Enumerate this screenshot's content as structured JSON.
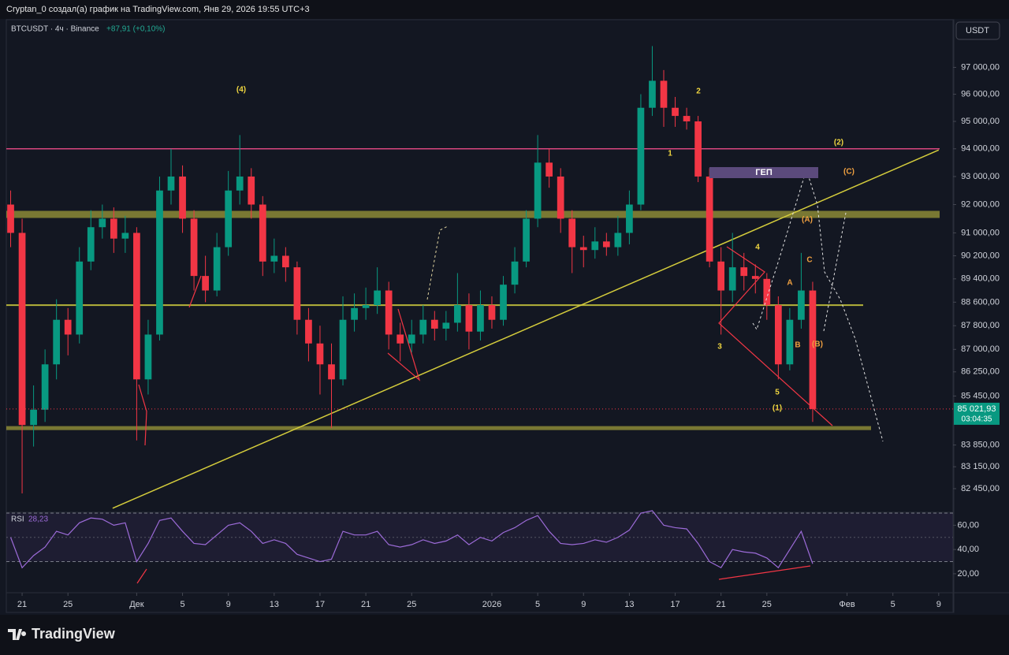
{
  "header": {
    "text": "Cryptan_0 создал(а) график на TradingView.com, Янв 29, 2026 19:55 UTC+3"
  },
  "symbol": {
    "text": "BTCUSDT · 4ч · Binance",
    "change": "+87,91 (+0,10%)"
  },
  "currency_button": "USDT",
  "brand": "TradingView",
  "chart_data": {
    "type": "candlestick",
    "yscale": "log",
    "ylim": [
      81750,
      98800
    ],
    "xlim": [
      -0.38,
      82.25
    ],
    "yticks": [
      {
        "value": 97000,
        "label": "97 000,00"
      },
      {
        "value": 96000,
        "label": "96 000,00"
      },
      {
        "value": 95000,
        "label": "95 000,00"
      },
      {
        "value": 94000,
        "label": "94 000,00"
      },
      {
        "value": 93000,
        "label": "93 000,00"
      },
      {
        "value": 92000,
        "label": "92 000,00"
      },
      {
        "value": 91000,
        "label": "91 000,00"
      },
      {
        "value": 90200,
        "label": "90 200,00"
      },
      {
        "value": 89400,
        "label": "89 400,00"
      },
      {
        "value": 88600,
        "label": "88 600,00"
      },
      {
        "value": 87800,
        "label": "87 800,00"
      },
      {
        "value": 87000,
        "label": "87 000,00"
      },
      {
        "value": 86250,
        "label": "86 250,00"
      },
      {
        "value": 85450,
        "label": "85 450,00"
      },
      {
        "value": 83850,
        "label": "83 850,00"
      },
      {
        "value": 83150,
        "label": "83 150,00"
      },
      {
        "value": 82450,
        "label": "82 450,00"
      }
    ],
    "xticks": [
      {
        "value": 1,
        "label": "21"
      },
      {
        "value": 5,
        "label": "25"
      },
      {
        "value": 11,
        "label": "Дек"
      },
      {
        "value": 15,
        "label": "5"
      },
      {
        "value": 19,
        "label": "9"
      },
      {
        "value": 23,
        "label": "13"
      },
      {
        "value": 27,
        "label": "17"
      },
      {
        "value": 31,
        "label": "21"
      },
      {
        "value": 35,
        "label": "25"
      },
      {
        "value": 42,
        "label": "2026"
      },
      {
        "value": 46,
        "label": "5"
      },
      {
        "value": 50,
        "label": "9"
      },
      {
        "value": 54,
        "label": "13"
      },
      {
        "value": 58,
        "label": "17"
      },
      {
        "value": 62,
        "label": "21"
      },
      {
        "value": 66,
        "label": "25"
      },
      {
        "value": 73,
        "label": "Фев"
      },
      {
        "value": 77,
        "label": "5"
      },
      {
        "value": 81,
        "label": "9"
      }
    ],
    "up_color": "#089981",
    "down_color": "#f23645",
    "candles": [
      [
        92000,
        92500,
        90500,
        91000
      ],
      [
        91000,
        91500,
        82300,
        84500
      ],
      [
        84500,
        85800,
        83800,
        85000
      ],
      [
        85000,
        87000,
        84600,
        86500
      ],
      [
        86500,
        88700,
        86000,
        88000
      ],
      [
        88000,
        88400,
        86800,
        87500
      ],
      [
        87500,
        90500,
        87200,
        90000
      ],
      [
        90000,
        91800,
        89700,
        91200
      ],
      [
        91200,
        92000,
        90800,
        91500
      ],
      [
        91500,
        91900,
        90300,
        90800
      ],
      [
        90800,
        91600,
        90300,
        91000
      ],
      [
        91000,
        91200,
        84000,
        86000
      ],
      [
        86000,
        88000,
        85500,
        87500
      ],
      [
        87500,
        93000,
        87300,
        92500
      ],
      [
        92500,
        94000,
        92000,
        93000
      ],
      [
        93000,
        93400,
        91000,
        91500
      ],
      [
        91500,
        91800,
        89000,
        89500
      ],
      [
        89500,
        90200,
        88600,
        89000
      ],
      [
        89000,
        91000,
        88800,
        90500
      ],
      [
        90500,
        93200,
        90200,
        92500
      ],
      [
        92500,
        94500,
        92000,
        93000
      ],
      [
        93000,
        93300,
        91500,
        92000
      ],
      [
        92000,
        92300,
        89500,
        90000
      ],
      [
        90000,
        90800,
        89600,
        90200
      ],
      [
        90200,
        90500,
        89300,
        89800
      ],
      [
        89800,
        90000,
        87500,
        88000
      ],
      [
        88000,
        88400,
        86600,
        87200
      ],
      [
        87200,
        87800,
        85500,
        86500
      ],
      [
        86500,
        87200,
        84400,
        86000
      ],
      [
        86000,
        88800,
        85800,
        88000
      ],
      [
        88000,
        88900,
        87600,
        88400
      ],
      [
        88400,
        89100,
        88000,
        88500
      ],
      [
        88500,
        89800,
        88200,
        89000
      ],
      [
        89000,
        89300,
        87000,
        87500
      ],
      [
        87500,
        87900,
        86600,
        87200
      ],
      [
        87200,
        88000,
        86900,
        87500
      ],
      [
        87500,
        88500,
        87200,
        88000
      ],
      [
        88000,
        88300,
        87300,
        87700
      ],
      [
        87700,
        88300,
        87300,
        87900
      ],
      [
        87900,
        89600,
        87600,
        88500
      ],
      [
        88500,
        88900,
        87000,
        87600
      ],
      [
        87600,
        89000,
        87300,
        88500
      ],
      [
        88500,
        88800,
        87700,
        88000
      ],
      [
        88000,
        89500,
        87800,
        89200
      ],
      [
        89200,
        90500,
        88900,
        90000
      ],
      [
        90000,
        91800,
        89800,
        91500
      ],
      [
        91500,
        94500,
        91200,
        93500
      ],
      [
        93500,
        94000,
        92600,
        93000
      ],
      [
        93000,
        93300,
        91000,
        91500
      ],
      [
        91500,
        91800,
        89600,
        90500
      ],
      [
        90500,
        90900,
        89800,
        90400
      ],
      [
        90400,
        91200,
        90100,
        90700
      ],
      [
        90700,
        91000,
        90200,
        90500
      ],
      [
        90500,
        91600,
        90200,
        91000
      ],
      [
        91000,
        92500,
        90600,
        92000
      ],
      [
        92000,
        96000,
        91800,
        95500
      ],
      [
        95500,
        97800,
        95200,
        96500
      ],
      [
        96500,
        96900,
        94800,
        95500
      ],
      [
        95500,
        95900,
        94800,
        95200
      ],
      [
        95200,
        95500,
        94700,
        95000
      ],
      [
        95000,
        95200,
        92800,
        93000
      ],
      [
        93000,
        93300,
        89800,
        90000
      ],
      [
        90000,
        90500,
        87500,
        89000
      ],
      [
        89000,
        91000,
        88600,
        89800
      ],
      [
        89800,
        90300,
        89000,
        89500
      ],
      [
        89500,
        89900,
        88900,
        89400
      ],
      [
        89400,
        89600,
        88000,
        88500
      ],
      [
        88500,
        88800,
        86000,
        86500
      ],
      [
        86500,
        88400,
        86300,
        88000
      ],
      [
        88000,
        90300,
        87700,
        89000
      ],
      [
        89000,
        89300,
        84600,
        85021.93
      ]
    ],
    "last_price": {
      "value": 85021.93,
      "label": "85 021,93"
    },
    "countdown": "03:04:35",
    "levels": [
      {
        "value": 94000,
        "color": "#d9467f",
        "width": 1.5
      },
      {
        "value": 91650,
        "color": "#9c9a3a",
        "width": 9
      },
      {
        "value": 88500,
        "color": "#b5b33a",
        "width": 2
      },
      {
        "value": 84400,
        "color": "#9c9a3a",
        "width": 5
      }
    ],
    "trendline": {
      "from": [
        8.9,
        81830
      ],
      "to": [
        81,
        93955
      ],
      "color": "#d4cc3c"
    }
  },
  "annotations": [
    "(4)",
    "2",
    "1",
    "(2)",
    "(C)",
    "(A)",
    "4",
    "3",
    "5",
    "(1)",
    "A",
    "B",
    "C",
    "(B)",
    "ГЕП"
  ],
  "rsi": {
    "label": "RSI",
    "value_label": "28,23",
    "ylim": [
      5,
      70
    ],
    "bands": [
      30,
      70
    ],
    "midline": 50,
    "yticks": [
      {
        "value": 60,
        "label": "60,00"
      },
      {
        "value": 40,
        "label": "40,00"
      },
      {
        "value": 20,
        "label": "20,00"
      }
    ],
    "color": "#9c6bd8",
    "values": [
      50,
      25,
      35,
      42,
      55,
      52,
      62,
      66,
      65,
      60,
      62,
      30,
      45,
      64,
      66,
      55,
      45,
      44,
      52,
      60,
      62,
      55,
      45,
      48,
      45,
      36,
      33,
      30,
      32,
      55,
      52,
      52,
      55,
      44,
      42,
      44,
      48,
      45,
      47,
      52,
      44,
      50,
      47,
      54,
      58,
      64,
      68,
      55,
      45,
      44,
      45,
      48,
      46,
      50,
      56,
      70,
      72,
      60,
      58,
      57,
      45,
      30,
      25,
      40,
      38,
      37,
      33,
      25,
      40,
      55,
      28.23
    ]
  }
}
